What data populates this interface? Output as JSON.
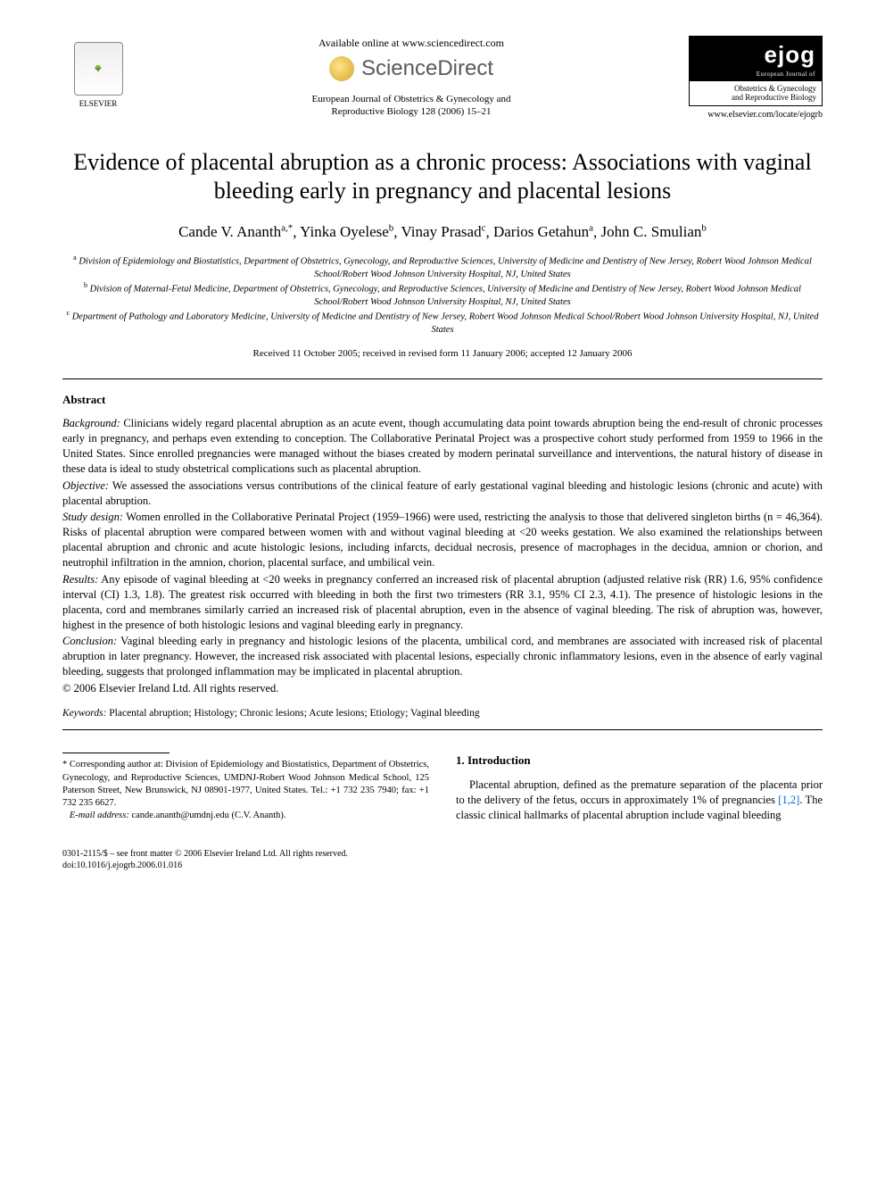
{
  "header": {
    "elsevier_label": "ELSEVIER",
    "available_online": "Available online at www.sciencedirect.com",
    "sciencedirect": "ScienceDirect",
    "journal_ref_line1": "European Journal of Obstetrics & Gynecology and",
    "journal_ref_line2": "Reproductive Biology 128 (2006) 15–21",
    "ejog_main": "ejog",
    "ejog_sub": "European Journal of",
    "ejog_line1": "Obstetrics & Gynecology",
    "ejog_line2": "and Reproductive Biology",
    "journal_url": "www.elsevier.com/locate/ejogrb"
  },
  "title": "Evidence of placental abruption as a chronic process: Associations with vaginal bleeding early in pregnancy and placental lesions",
  "authors": [
    {
      "name": "Cande V. Ananth",
      "sup": "a,*"
    },
    {
      "name": "Yinka Oyelese",
      "sup": "b"
    },
    {
      "name": "Vinay Prasad",
      "sup": "c"
    },
    {
      "name": "Darios Getahun",
      "sup": "a"
    },
    {
      "name": "John C. Smulian",
      "sup": "b"
    }
  ],
  "affiliations": {
    "a": "Division of Epidemiology and Biostatistics, Department of Obstetrics, Gynecology, and Reproductive Sciences, University of Medicine and Dentistry of New Jersey, Robert Wood Johnson Medical School/Robert Wood Johnson University Hospital, NJ, United States",
    "b": "Division of Maternal-Fetal Medicine, Department of Obstetrics, Gynecology, and Reproductive Sciences, University of Medicine and Dentistry of New Jersey, Robert Wood Johnson Medical School/Robert Wood Johnson University Hospital, NJ, United States",
    "c": "Department of Pathology and Laboratory Medicine, University of Medicine and Dentistry of New Jersey, Robert Wood Johnson Medical School/Robert Wood Johnson University Hospital, NJ, United States"
  },
  "dates": "Received 11 October 2005; received in revised form 11 January 2006; accepted 12 January 2006",
  "abstract": {
    "heading": "Abstract",
    "background_label": "Background:",
    "background": "Clinicians widely regard placental abruption as an acute event, though accumulating data point towards abruption being the end-result of chronic processes early in pregnancy, and perhaps even extending to conception. The Collaborative Perinatal Project was a prospective cohort study performed from 1959 to 1966 in the United States. Since enrolled pregnancies were managed without the biases created by modern perinatal surveillance and interventions, the natural history of disease in these data is ideal to study obstetrical complications such as placental abruption.",
    "objective_label": "Objective:",
    "objective": "We assessed the associations versus contributions of the clinical feature of early gestational vaginal bleeding and histologic lesions (chronic and acute) with placental abruption.",
    "design_label": "Study design:",
    "design": "Women enrolled in the Collaborative Perinatal Project (1959–1966) were used, restricting the analysis to those that delivered singleton births (n = 46,364). Risks of placental abruption were compared between women with and without vaginal bleeding at <20 weeks gestation. We also examined the relationships between placental abruption and chronic and acute histologic lesions, including infarcts, decidual necrosis, presence of macrophages in the decidua, amnion or chorion, and neutrophil infiltration in the amnion, chorion, placental surface, and umbilical vein.",
    "results_label": "Results:",
    "results": "Any episode of vaginal bleeding at <20 weeks in pregnancy conferred an increased risk of placental abruption (adjusted relative risk (RR) 1.6, 95% confidence interval (CI) 1.3, 1.8). The greatest risk occurred with bleeding in both the first two trimesters (RR 3.1, 95% CI 2.3, 4.1). The presence of histologic lesions in the placenta, cord and membranes similarly carried an increased risk of placental abruption, even in the absence of vaginal bleeding. The risk of abruption was, however, highest in the presence of both histologic lesions and vaginal bleeding early in pregnancy.",
    "conclusion_label": "Conclusion:",
    "conclusion": "Vaginal bleeding early in pregnancy and histologic lesions of the placenta, umbilical cord, and membranes are associated with increased risk of placental abruption in later pregnancy. However, the increased risk associated with placental lesions, especially chronic inflammatory lesions, even in the absence of early vaginal bleeding, suggests that prolonged inflammation may be implicated in placental abruption.",
    "copyright": "© 2006 Elsevier Ireland Ltd. All rights reserved."
  },
  "keywords": {
    "label": "Keywords:",
    "text": "Placental abruption; Histology; Chronic lesions; Acute lesions; Etiology; Vaginal bleeding"
  },
  "corresponding": {
    "text": "* Corresponding author at: Division of Epidemiology and Biostatistics, Department of Obstetrics, Gynecology, and Reproductive Sciences, UMDNJ-Robert Wood Johnson Medical School, 125 Paterson Street, New Brunswick, NJ 08901-1977, United States. Tel.: +1 732 235 7940; fax: +1 732 235 6627.",
    "email_label": "E-mail address:",
    "email": "cande.ananth@umdnj.edu (C.V. Ananth)."
  },
  "introduction": {
    "heading": "1.  Introduction",
    "para1_a": "Placental abruption, defined as the premature separation of the placenta prior to the delivery of the fetus, occurs in approximately 1% of pregnancies ",
    "para1_refs": "[1,2]",
    "para1_b": ". The classic clinical hallmarks of placental abruption include vaginal bleeding"
  },
  "footer": {
    "line1": "0301-2115/$ – see front matter © 2006 Elsevier Ireland Ltd. All rights reserved.",
    "line2": "doi:10.1016/j.ejogrb.2006.01.016"
  }
}
